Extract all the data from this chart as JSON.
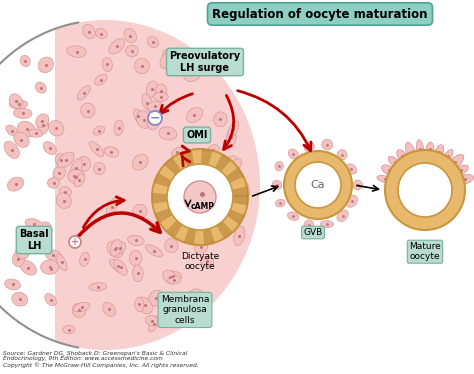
{
  "title": "Regulation of oocyte maturation",
  "title_box_color": "#8ecfc4",
  "bg_color": "#ffffff",
  "label_box_color": "#b8ddd0",
  "label_edge_color": "#7ab0a0",
  "arrow_color": "#bb0000",
  "follicle_cell_color": "#f5c0c0",
  "follicle_cell_edge": "#d09090",
  "oocyte_tan": "#e8b86d",
  "oocyte_tan_dark": "#c8963c",
  "oocyte_white": "#ffffff",
  "oocyte_pink": "#f5c0c0",
  "source_text": "Source: Gardner DG, Shoback D: Greenspan's Basic & Clinical\nEndocrinology, 9th Edition: www.accessmedicine.com\nCopyright © The McGraw-Hill Companies, Inc. All rights reserved.",
  "title_text": "Regulation of oocyte maturation",
  "preovulatory_text": "Preovulatory\nLH surge",
  "omi_text": "OMI",
  "camp_text": "cAMP",
  "basal_lh_text": "Basal\nLH",
  "dictyate_text": "Dictyate\noocyte",
  "gvb_text": "GVB",
  "mature_text": "Mature\noocyte",
  "membrana_text": "Membrana\ngranulosa\ncells",
  "ca_text": "Ca"
}
